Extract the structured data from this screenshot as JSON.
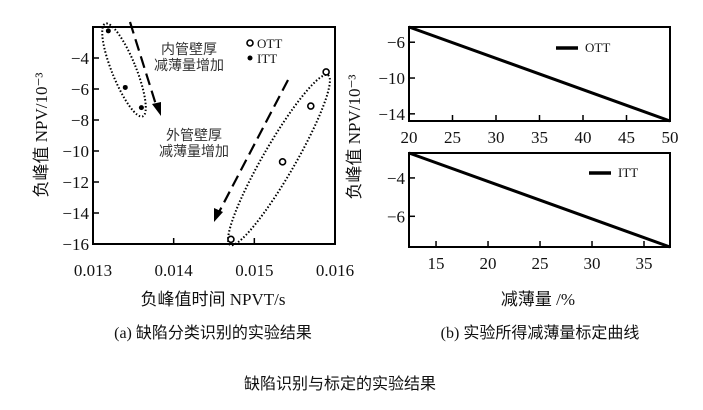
{
  "figure_title": "缺陷识别与标定的实验结果",
  "chart_data": [
    {
      "type": "scatter",
      "caption": "(a) 缺陷分类识别的实验结果",
      "xlabel": "负峰值时间 NPVT/s",
      "ylabel": "负峰值 NPV/10⁻³",
      "xlim": [
        0.013,
        0.016
      ],
      "ylim": [
        -16,
        -2
      ],
      "xticks": [
        "0.013",
        "0.014",
        "0.015",
        "0.016"
      ],
      "yticks": [
        "-4",
        "-6",
        "-8",
        "-10",
        "-12",
        "-14",
        "-16"
      ],
      "legend_placement": "top-right",
      "series": [
        {
          "name": "OTT",
          "marker": "open-circle",
          "x": [
            0.01589,
            0.0157,
            0.01535,
            0.01471
          ],
          "y": [
            -4.9,
            -7.1,
            -10.7,
            -15.7
          ]
        },
        {
          "name": "ITT",
          "marker": "filled-dot",
          "x": [
            0.01319,
            0.0134,
            0.0136
          ],
          "y": [
            -2.25,
            -5.9,
            -7.2
          ]
        }
      ],
      "annotations": [
        {
          "lines": [
            "内管壁厚",
            "减薄量增加"
          ]
        },
        {
          "lines": [
            "外管壁厚",
            "减薄量增加"
          ]
        }
      ]
    },
    {
      "type": "line",
      "xlim": [
        20,
        50
      ],
      "ylim": [
        -14.8,
        -4.3
      ],
      "xticks": [
        "20",
        "25",
        "30",
        "35",
        "40",
        "45",
        "50"
      ],
      "yticks": [
        "-6",
        "-10",
        "-14"
      ],
      "legend_placement": "top-right",
      "series": [
        {
          "name": "OTT",
          "x": [
            20,
            50
          ],
          "y": [
            -4.3,
            -14.8
          ]
        }
      ]
    },
    {
      "type": "line",
      "caption": "(b) 实验所得减薄量标定曲线",
      "xlabel": "减薄量 /%",
      "ylabel": "负峰值 NPV/10⁻³",
      "xlim": [
        12.4,
        37.5
      ],
      "ylim": [
        -7.6,
        -2.7
      ],
      "xticks": [
        "15",
        "20",
        "25",
        "30",
        "35"
      ],
      "yticks": [
        "-4",
        "-6"
      ],
      "legend_placement": "top-right",
      "series": [
        {
          "name": "ITT",
          "x": [
            12.4,
            37.5
          ],
          "y": [
            -2.7,
            -7.6
          ]
        }
      ]
    }
  ]
}
